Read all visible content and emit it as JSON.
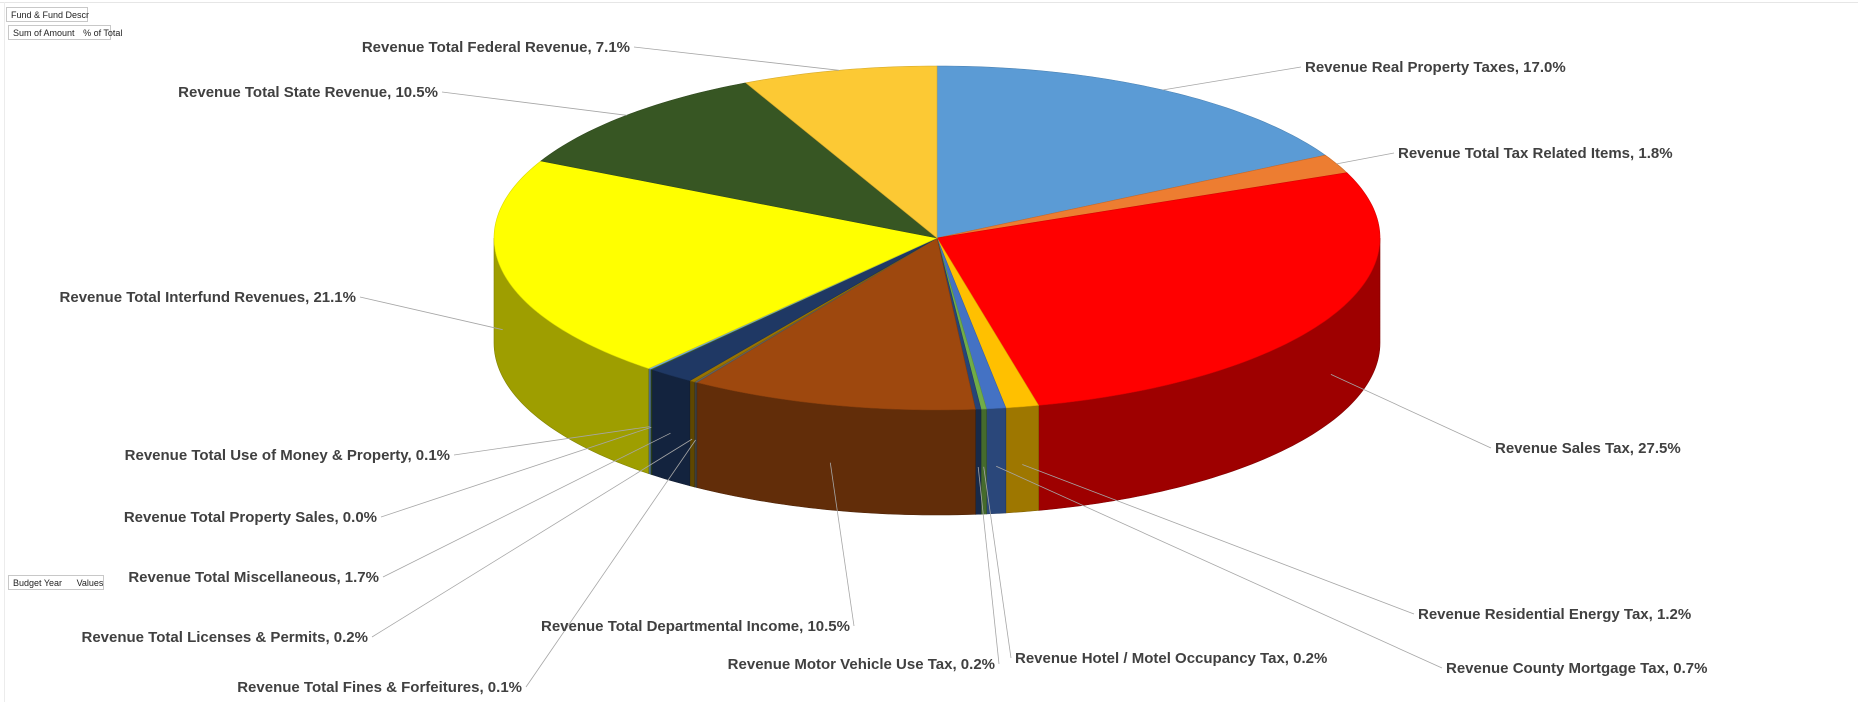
{
  "pivot": {
    "filter_field": "Fund & Fund Descr",
    "value_field_1": "Sum of Amount",
    "value_field_2": "% of Total",
    "axis_field": "Budget Year",
    "values_field": "Values"
  },
  "chart_data": {
    "type": "pie",
    "style": "3d-exploded-none",
    "start_angle_deg": 0,
    "direction": "clockwise",
    "labels_format": "{name}, {pct}",
    "slices": [
      {
        "name": "Revenue Real Property Taxes",
        "value": 17.0,
        "label": "Revenue Real Property Taxes, 17.0%",
        "color": "#5b9bd5"
      },
      {
        "name": "Revenue Total Tax Related Items",
        "value": 1.8,
        "label": "Revenue Total Tax Related Items, 1.8%",
        "color": "#ed7d31"
      },
      {
        "name": "Revenue Sales Tax",
        "value": 27.5,
        "label": "Revenue Sales Tax, 27.5%",
        "color": "#ff0000"
      },
      {
        "name": "Revenue Residential Energy Tax",
        "value": 1.2,
        "label": "Revenue Residential Energy Tax, 1.2%",
        "color": "#ffc000"
      },
      {
        "name": "Revenue County Mortgage Tax",
        "value": 0.7,
        "label": "Revenue County Mortgage Tax, 0.7%",
        "color": "#4472c4"
      },
      {
        "name": "Revenue Hotel / Motel Occupancy Tax",
        "value": 0.2,
        "label": "Revenue Hotel / Motel Occupancy Tax, 0.2%",
        "color": "#70ad47"
      },
      {
        "name": "Revenue Motor Vehicle Use Tax",
        "value": 0.2,
        "label": "Revenue Motor Vehicle Use Tax, 0.2%",
        "color": "#264478"
      },
      {
        "name": "Revenue Total Departmental Income",
        "value": 10.5,
        "label": "Revenue Total Departmental Income, 10.5%",
        "color": "#9e480e"
      },
      {
        "name": "Revenue Total Fines & Forfeitures",
        "value": 0.1,
        "label": "Revenue Total Fines & Forfeitures, 0.1%",
        "color": "#636363"
      },
      {
        "name": "Revenue Total Licenses & Permits",
        "value": 0.2,
        "label": "Revenue Total Licenses & Permits, 0.2%",
        "color": "#997300"
      },
      {
        "name": "Revenue Total Miscellaneous",
        "value": 1.7,
        "label": "Revenue Total Miscellaneous, 1.7%",
        "color": "#1f3864"
      },
      {
        "name": "Revenue Total Property Sales",
        "value": 0.0,
        "label": "Revenue Total Property Sales, 0.0%",
        "color": "#43682b"
      },
      {
        "name": "Revenue Total Use of Money & Property",
        "value": 0.1,
        "label": "Revenue Total Use of Money & Property, 0.1%",
        "color": "#7cafdd"
      },
      {
        "name": "Revenue Total Interfund Revenues",
        "value": 21.1,
        "label": "Revenue Total Interfund Revenues, 21.1%",
        "color": "#ffff00"
      },
      {
        "name": "Revenue Total State Revenue",
        "value": 10.5,
        "label": "Revenue Total State Revenue, 10.5%",
        "color": "#375623"
      },
      {
        "name": "Revenue Total Federal Revenue",
        "value": 7.1,
        "label": "Revenue Total Federal Revenue, 7.1%",
        "color": "#fcc934"
      }
    ]
  }
}
